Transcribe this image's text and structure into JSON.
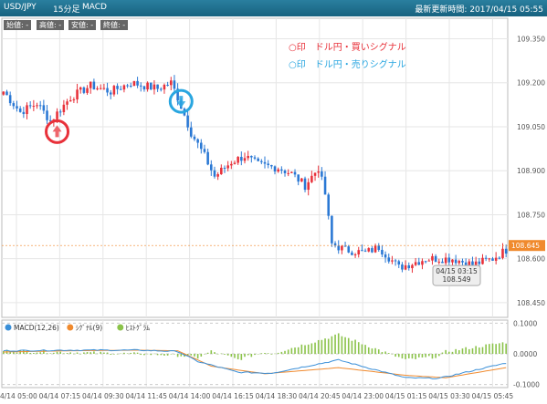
{
  "header": {
    "symbol": "USD/JPY",
    "interval": "15分足",
    "indicator": "MACD",
    "updated": "最新更新時間: 2017/04/15 05:55"
  },
  "ohlc_labels": [
    "始値: -",
    "高値: -",
    "安値: -",
    "終値: -"
  ],
  "legend": {
    "buy": "○印　ドル円・買いシグナル",
    "sell": "○印　ドル円・売りシグナル"
  },
  "colors": {
    "up": "#e8313a",
    "down": "#2a78d4",
    "buy_signal": "#e8313a",
    "sell_signal": "#29a6e0",
    "macd": "#3a8fd8",
    "signal": "#f08a2e",
    "histogram": "#8bc34a",
    "last_price_tag": "#f08a2e"
  },
  "price_panel": {
    "y_ticks": [
      "109.350",
      "109.200",
      "109.050",
      "108.900",
      "108.750",
      "108.600",
      "108.450"
    ],
    "last_price": "108.645",
    "crosshair_time": "04/15 03:15",
    "crosshair_price": "108.549"
  },
  "macd_panel": {
    "legend": [
      "MACD(12,26)",
      "ｼｸﾞﾅﾙ(9)",
      "ﾋｽﾄｸﾞﾗﾑ"
    ],
    "y_ticks": [
      "0.1000",
      "0.0000",
      "-0.1000"
    ]
  },
  "x_ticks": [
    "04/14 05:00",
    "04/14 07:15",
    "04/14 09:30",
    "04/14 11:45",
    "04/14 14:00",
    "04/14 16:15",
    "04/14 18:30",
    "04/14 20:45",
    "04/14 23:00",
    "04/15 01:15",
    "04/15 03:30",
    "04/15 05:45"
  ],
  "chart_data": {
    "type": "candlestick",
    "ylim": [
      108.4,
      109.42
    ],
    "close_anchors": [
      [
        0,
        109.17
      ],
      [
        5,
        109.1
      ],
      [
        10,
        109.13
      ],
      [
        14,
        109.07
      ],
      [
        20,
        109.15
      ],
      [
        26,
        109.19
      ],
      [
        32,
        109.17
      ],
      [
        38,
        109.2
      ],
      [
        46,
        109.18
      ],
      [
        50,
        109.2
      ],
      [
        52,
        109.15
      ],
      [
        56,
        109.03
      ],
      [
        60,
        108.95
      ],
      [
        63,
        108.88
      ],
      [
        68,
        108.93
      ],
      [
        72,
        108.95
      ],
      [
        76,
        108.92
      ],
      [
        82,
        108.91
      ],
      [
        86,
        108.89
      ],
      [
        90,
        108.85
      ],
      [
        94,
        108.91
      ],
      [
        96,
        108.82
      ],
      [
        98,
        108.65
      ],
      [
        102,
        108.63
      ],
      [
        108,
        108.62
      ],
      [
        112,
        108.64
      ],
      [
        118,
        108.57
      ],
      [
        126,
        108.6
      ],
      [
        134,
        108.6
      ],
      [
        140,
        108.58
      ],
      [
        146,
        108.6
      ],
      [
        150,
        108.63
      ]
    ],
    "buy_signal_index": 16,
    "sell_signal_index": 53,
    "macd_anchors": [
      [
        0,
        0.01
      ],
      [
        20,
        0.012
      ],
      [
        40,
        0.012
      ],
      [
        52,
        0.008
      ],
      [
        58,
        -0.025
      ],
      [
        70,
        -0.06
      ],
      [
        80,
        -0.063
      ],
      [
        100,
        -0.02
      ],
      [
        120,
        -0.078
      ],
      [
        130,
        -0.08
      ],
      [
        150,
        -0.03
      ]
    ],
    "signal_anchors": [
      [
        0,
        0.006
      ],
      [
        20,
        0.01
      ],
      [
        40,
        0.012
      ],
      [
        52,
        0.01
      ],
      [
        62,
        -0.04
      ],
      [
        78,
        -0.065
      ],
      [
        100,
        -0.045
      ],
      [
        120,
        -0.07
      ],
      [
        132,
        -0.078
      ],
      [
        150,
        -0.045
      ]
    ],
    "macd_ylim": [
      -0.11,
      0.11
    ]
  }
}
